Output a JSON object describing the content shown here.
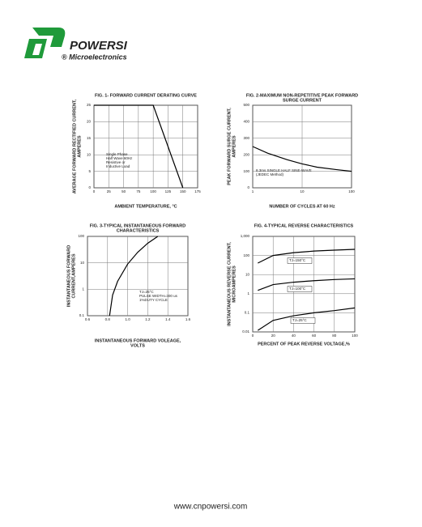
{
  "logo": {
    "name": "POWERSI",
    "sub": "® Microelectronics"
  },
  "chart_data": [
    {
      "type": "line",
      "title": [
        "FIG. 1- FORWARD CURRENT DERATING CURVE"
      ],
      "ylabel": [
        "AVERAGE FORWARD RECTIFIED CURRENT,",
        "AMPERES"
      ],
      "xlabel": [
        "AMBIENT TEMPERATURE, °C"
      ],
      "annotations": [
        [
          "Single Phase",
          "Half Wave 60Hz",
          "Resistive or",
          "Inductive Load"
        ]
      ],
      "x": [
        0,
        100,
        150
      ],
      "series": [
        {
          "color": "#000000",
          "values": [
            25,
            25,
            0
          ]
        }
      ],
      "xlim": [
        0,
        175
      ],
      "xticks": [
        0,
        25,
        50,
        75,
        100,
        125,
        150,
        175
      ],
      "ylim": [
        0,
        25
      ],
      "yticks": [
        0,
        5,
        10,
        15,
        20,
        25
      ],
      "grid": true
    },
    {
      "type": "line",
      "title": [
        "FIG. 2-MAXIMUM NON-REPETITIVE PEAK FORWARD",
        "SURGE CURRENT"
      ],
      "ylabel": [
        "PEAK FORWARD SURGE CURRENT,",
        "AMPERES"
      ],
      "xlabel": [
        "NUMBER OF CYCLES AT 60 Hz"
      ],
      "annotations": [
        [
          "8.3ms SINGLE HALF SINE-WAVE",
          "(JEDEC Method)"
        ]
      ],
      "x": [
        1,
        2,
        5,
        10,
        20,
        50,
        100
      ],
      "series": [
        {
          "color": "#000000",
          "values": [
            250,
            210,
            170,
            145,
            125,
            110,
            100
          ]
        }
      ],
      "xlim": [
        1,
        100
      ],
      "xticks": [
        1,
        10,
        100
      ],
      "log_x": true,
      "ylim": [
        0,
        500
      ],
      "yticks": [
        0,
        100,
        200,
        300,
        400,
        500
      ],
      "grid": true
    },
    {
      "type": "line",
      "title": [
        "FIG. 3-TYPICAL INSTANTANEOUS FORWARD",
        "CHARACTERISTICS"
      ],
      "ylabel": [
        "INSTANTANEOUS FORWARD",
        "CURRENT,AMPERES"
      ],
      "xlabel": [
        "INSTANTANEOUS FORWARD VOLEAGE,",
        "VOLTS"
      ],
      "annotations": [
        [
          "TJ=25°C",
          "PULSE WIDTH=300 us",
          "1%DUTY CYCLE"
        ]
      ],
      "x": [
        0.82,
        0.85,
        0.9,
        1.0,
        1.1,
        1.2,
        1.3
      ],
      "series": [
        {
          "color": "#000000",
          "values": [
            0.1,
            0.6,
            2,
            9,
            25,
            55,
            100
          ]
        }
      ],
      "xlim": [
        0.6,
        1.6
      ],
      "xticks": [
        0.6,
        0.8,
        {
          "value": 1,
          "label": "1.0"
        },
        1.2,
        1.4,
        1.6
      ],
      "ylim": [
        0.1,
        100
      ],
      "yticks": [
        0.1,
        1,
        10,
        100
      ],
      "log_y": true,
      "grid": true
    },
    {
      "type": "line",
      "title": [
        "FIG. 4-TYPICAL REVERSE CHARACTERISTICS"
      ],
      "ylabel": [
        "INSTANTANEOUS REVERSE CURRENT,",
        "MICROAMPERES"
      ],
      "xlabel": [
        "PERCENT OF PEAK REVERSE VOLTAGE,%"
      ],
      "annotations": [],
      "x": [
        5,
        20,
        40,
        60,
        80,
        100
      ],
      "series": [
        {
          "name": "TJ=150°C",
          "color": "#000000",
          "values": [
            40,
            100,
            140,
            170,
            190,
            210
          ]
        },
        {
          "name": "TJ=100°C",
          "color": "#000000",
          "values": [
            1.5,
            3,
            4,
            4.8,
            5.5,
            6
          ]
        },
        {
          "name": "TJ=25°C",
          "color": "#000000",
          "values": [
            0.012,
            0.04,
            0.07,
            0.1,
            0.13,
            0.18
          ]
        }
      ],
      "xlim": [
        0,
        100
      ],
      "xticks": [
        0,
        20,
        40,
        60,
        80,
        100
      ],
      "ylim": [
        0.01,
        1000
      ],
      "yticks": [
        0.01,
        0.1,
        1,
        10,
        100,
        {
          "value": 1000,
          "label": "1,000"
        }
      ],
      "log_y": true,
      "grid": true
    }
  ],
  "footer": "www.cnpowersi.com"
}
